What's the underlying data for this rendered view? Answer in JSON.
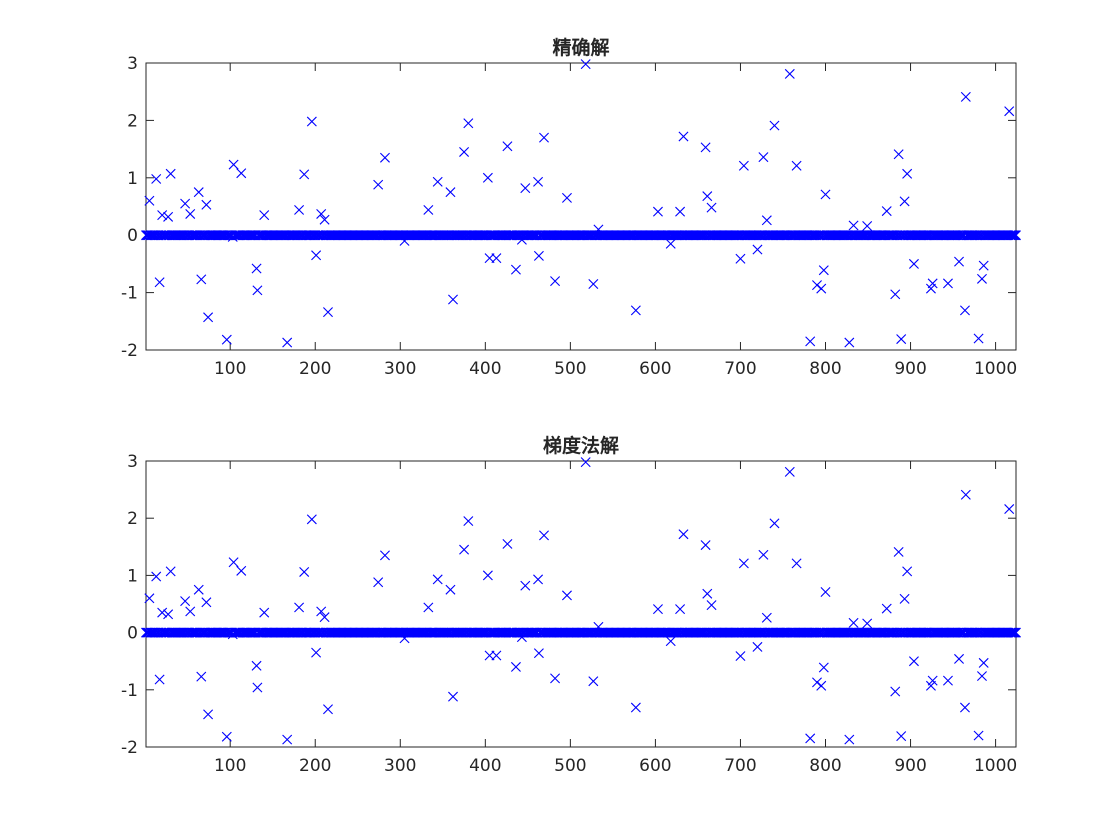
{
  "chart_data": [
    {
      "type": "scatter",
      "title": "精确解",
      "xlabel": "",
      "ylabel": "",
      "xlim": [
        1,
        1024
      ],
      "ylim": [
        -2,
        3
      ],
      "xticks": [
        100,
        200,
        300,
        400,
        500,
        600,
        700,
        800,
        900,
        1000
      ],
      "yticks": [
        -2,
        -1,
        0,
        1,
        2,
        3
      ],
      "marker": "x",
      "color": "#0000ff",
      "grid": false,
      "zero_baseline": "all other indices 1..1024 have value 0",
      "points": [
        [
          5,
          0.6
        ],
        [
          13,
          0.98
        ],
        [
          17,
          -0.82
        ],
        [
          20,
          0.35
        ],
        [
          27,
          0.32
        ],
        [
          30,
          1.07
        ],
        [
          47,
          0.55
        ],
        [
          53,
          0.37
        ],
        [
          63,
          0.75
        ],
        [
          66,
          -0.77
        ],
        [
          72,
          0.53
        ],
        [
          74,
          -1.43
        ],
        [
          96,
          -1.82
        ],
        [
          103,
          -0.03
        ],
        [
          104,
          1.23
        ],
        [
          113,
          1.08
        ],
        [
          131,
          -0.58
        ],
        [
          132,
          -0.96
        ],
        [
          140,
          0.35
        ],
        [
          167,
          -1.87
        ],
        [
          181,
          0.44
        ],
        [
          187,
          1.06
        ],
        [
          196,
          1.98
        ],
        [
          201,
          -0.35
        ],
        [
          207,
          0.37
        ],
        [
          211,
          0.27
        ],
        [
          215,
          -1.34
        ],
        [
          274,
          0.88
        ],
        [
          282,
          1.35
        ],
        [
          305,
          -0.1
        ],
        [
          333,
          0.44
        ],
        [
          344,
          0.93
        ],
        [
          359,
          0.75
        ],
        [
          362,
          -1.12
        ],
        [
          375,
          1.45
        ],
        [
          380,
          1.95
        ],
        [
          403,
          1.0
        ],
        [
          405,
          -0.4
        ],
        [
          413,
          -0.4
        ],
        [
          426,
          1.55
        ],
        [
          436,
          -0.6
        ],
        [
          443,
          -0.08
        ],
        [
          447,
          0.82
        ],
        [
          462,
          0.93
        ],
        [
          463,
          -0.36
        ],
        [
          469,
          1.7
        ],
        [
          482,
          -0.8
        ],
        [
          496,
          0.65
        ],
        [
          518,
          2.98
        ],
        [
          527,
          -0.85
        ],
        [
          533,
          0.1
        ],
        [
          577,
          -1.31
        ],
        [
          603,
          0.41
        ],
        [
          618,
          -0.15
        ],
        [
          629,
          0.41
        ],
        [
          633,
          1.72
        ],
        [
          659,
          1.53
        ],
        [
          661,
          0.68
        ],
        [
          666,
          0.48
        ],
        [
          700,
          -0.41
        ],
        [
          704,
          1.21
        ],
        [
          720,
          -0.25
        ],
        [
          727,
          1.36
        ],
        [
          731,
          0.26
        ],
        [
          740,
          1.91
        ],
        [
          758,
          2.81
        ],
        [
          766,
          1.21
        ],
        [
          782,
          -1.85
        ],
        [
          790,
          -0.87
        ],
        [
          795,
          -0.93
        ],
        [
          798,
          -0.61
        ],
        [
          800,
          0.71
        ],
        [
          828,
          -1.87
        ],
        [
          833,
          0.17
        ],
        [
          849,
          0.16
        ],
        [
          872,
          0.42
        ],
        [
          882,
          -1.03
        ],
        [
          886,
          1.41
        ],
        [
          889,
          -1.81
        ],
        [
          893,
          0.59
        ],
        [
          896,
          1.07
        ],
        [
          904,
          -0.5
        ],
        [
          924,
          -0.93
        ],
        [
          926,
          -0.84
        ],
        [
          944,
          -0.84
        ],
        [
          957,
          -0.46
        ],
        [
          964,
          -1.31
        ],
        [
          965,
          2.41
        ],
        [
          980,
          -1.8
        ],
        [
          984,
          -0.76
        ],
        [
          986,
          -0.53
        ],
        [
          1016,
          2.16
        ]
      ]
    },
    {
      "type": "scatter",
      "title": "梯度法解",
      "xlabel": "",
      "ylabel": "",
      "xlim": [
        1,
        1024
      ],
      "ylim": [
        -2,
        3
      ],
      "xticks": [
        100,
        200,
        300,
        400,
        500,
        600,
        700,
        800,
        900,
        1000
      ],
      "yticks": [
        -2,
        -1,
        0,
        1,
        2,
        3
      ],
      "marker": "x",
      "color": "#0000ff",
      "grid": false,
      "zero_baseline": "all other indices 1..1024 have value 0",
      "points": [
        [
          5,
          0.6
        ],
        [
          13,
          0.98
        ],
        [
          17,
          -0.82
        ],
        [
          20,
          0.35
        ],
        [
          27,
          0.32
        ],
        [
          30,
          1.07
        ],
        [
          47,
          0.55
        ],
        [
          53,
          0.37
        ],
        [
          63,
          0.75
        ],
        [
          66,
          -0.77
        ],
        [
          72,
          0.53
        ],
        [
          74,
          -1.43
        ],
        [
          96,
          -1.82
        ],
        [
          103,
          -0.03
        ],
        [
          104,
          1.23
        ],
        [
          113,
          1.08
        ],
        [
          131,
          -0.58
        ],
        [
          132,
          -0.96
        ],
        [
          140,
          0.35
        ],
        [
          167,
          -1.87
        ],
        [
          181,
          0.44
        ],
        [
          187,
          1.06
        ],
        [
          196,
          1.98
        ],
        [
          201,
          -0.35
        ],
        [
          207,
          0.37
        ],
        [
          211,
          0.27
        ],
        [
          215,
          -1.34
        ],
        [
          274,
          0.88
        ],
        [
          282,
          1.35
        ],
        [
          305,
          -0.1
        ],
        [
          333,
          0.44
        ],
        [
          344,
          0.93
        ],
        [
          359,
          0.75
        ],
        [
          362,
          -1.12
        ],
        [
          375,
          1.45
        ],
        [
          380,
          1.95
        ],
        [
          403,
          1.0
        ],
        [
          405,
          -0.4
        ],
        [
          413,
          -0.4
        ],
        [
          426,
          1.55
        ],
        [
          436,
          -0.6
        ],
        [
          443,
          -0.08
        ],
        [
          447,
          0.82
        ],
        [
          462,
          0.93
        ],
        [
          463,
          -0.36
        ],
        [
          469,
          1.7
        ],
        [
          482,
          -0.8
        ],
        [
          496,
          0.65
        ],
        [
          518,
          2.98
        ],
        [
          527,
          -0.85
        ],
        [
          533,
          0.1
        ],
        [
          577,
          -1.31
        ],
        [
          603,
          0.41
        ],
        [
          618,
          -0.15
        ],
        [
          629,
          0.41
        ],
        [
          633,
          1.72
        ],
        [
          659,
          1.53
        ],
        [
          661,
          0.68
        ],
        [
          666,
          0.48
        ],
        [
          700,
          -0.41
        ],
        [
          704,
          1.21
        ],
        [
          720,
          -0.25
        ],
        [
          727,
          1.36
        ],
        [
          731,
          0.26
        ],
        [
          740,
          1.91
        ],
        [
          758,
          2.81
        ],
        [
          766,
          1.21
        ],
        [
          782,
          -1.85
        ],
        [
          790,
          -0.87
        ],
        [
          795,
          -0.93
        ],
        [
          798,
          -0.61
        ],
        [
          800,
          0.71
        ],
        [
          828,
          -1.87
        ],
        [
          833,
          0.17
        ],
        [
          849,
          0.16
        ],
        [
          872,
          0.42
        ],
        [
          882,
          -1.03
        ],
        [
          886,
          1.41
        ],
        [
          889,
          -1.81
        ],
        [
          893,
          0.59
        ],
        [
          896,
          1.07
        ],
        [
          904,
          -0.5
        ],
        [
          924,
          -0.93
        ],
        [
          926,
          -0.84
        ],
        [
          944,
          -0.84
        ],
        [
          957,
          -0.46
        ],
        [
          964,
          -1.31
        ],
        [
          965,
          2.41
        ],
        [
          980,
          -1.8
        ],
        [
          984,
          -0.76
        ],
        [
          986,
          -0.53
        ],
        [
          1016,
          2.16
        ]
      ]
    }
  ]
}
